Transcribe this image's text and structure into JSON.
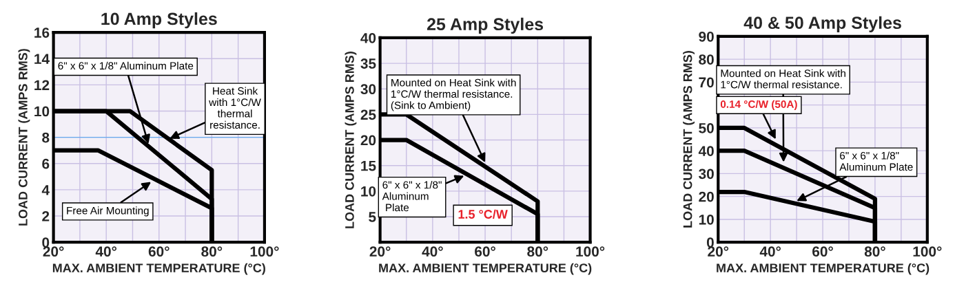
{
  "chart_data": [
    {
      "type": "line",
      "title": "10 Amp Styles",
      "xlabel": "MAX. AMBIENT TEMPERATURE (°C)",
      "ylabel": "LOAD CURRENT (AMPS RMS)",
      "xlim": [
        20,
        100
      ],
      "ylim": [
        0,
        16
      ],
      "xticks": [
        {
          "value": 20,
          "label": "20°"
        },
        {
          "value": 30,
          "label": null
        },
        {
          "value": 40,
          "label": "40°"
        },
        {
          "value": 50,
          "label": null
        },
        {
          "value": 60,
          "label": "60°"
        },
        {
          "value": 70,
          "label": null
        },
        {
          "value": 80,
          "label": "80°"
        },
        {
          "value": 90,
          "label": null
        },
        {
          "value": 100,
          "label": "100°"
        }
      ],
      "yticks": [
        0,
        2,
        4,
        6,
        8,
        10,
        12,
        14,
        16
      ],
      "grid": true,
      "series": [
        {
          "color": "#000000",
          "x": [
            20,
            49,
            80,
            80
          ],
          "values": [
            10,
            10,
            5.5,
            0
          ]
        },
        {
          "color": "#000000",
          "x": [
            20,
            40,
            80,
            80
          ],
          "values": [
            10,
            10,
            3.3,
            0
          ]
        },
        {
          "color": "#000000",
          "x": [
            20,
            37,
            80,
            80
          ],
          "values": [
            7,
            7,
            2.6,
            0
          ]
        }
      ],
      "ref_lines": [
        {
          "axis": "y",
          "value": 8,
          "color": "#66aaee"
        }
      ],
      "annotations": [
        {
          "text": "6\" x 6\" x 1/8\" Aluminum Plate",
          "x": 56,
          "y": 7.5
        },
        {
          "text": "Heat Sink\nwith 1°C/W\nthermal\nresistance.",
          "x": 64,
          "y": 7.9
        },
        {
          "text": "Free Air Mounting",
          "x": 57,
          "y": 4.6
        }
      ]
    },
    {
      "type": "line",
      "title": "25 Amp Styles",
      "xlabel": "MAX. AMBIENT TEMPERATURE (°C)",
      "ylabel": "LOAD CURRENT (AMPS RMS)",
      "xlim": [
        20,
        100
      ],
      "ylim": [
        0,
        40
      ],
      "xticks": [
        {
          "value": 20,
          "label": "20°"
        },
        {
          "value": 30,
          "label": null
        },
        {
          "value": 40,
          "label": "40°"
        },
        {
          "value": 50,
          "label": null
        },
        {
          "value": 60,
          "label": "60°"
        },
        {
          "value": 70,
          "label": null
        },
        {
          "value": 80,
          "label": "80°"
        },
        {
          "value": 90,
          "label": null
        },
        {
          "value": 100,
          "label": "100°"
        }
      ],
      "yticks": [
        5,
        10,
        15,
        20,
        25,
        30,
        35,
        40
      ],
      "grid": true,
      "series": [
        {
          "color": "#000000",
          "x": [
            20,
            30,
            80,
            80
          ],
          "values": [
            25,
            25,
            8,
            0
          ]
        },
        {
          "color": "#000000",
          "x": [
            20,
            30,
            80,
            80
          ],
          "values": [
            20,
            20,
            5.5,
            0
          ]
        }
      ],
      "annotations": [
        {
          "text": "Mounted on Heat Sink with\n1°C/W thermal resistance.\n(Sink to Ambient)",
          "x": 60,
          "y": 15.6
        },
        {
          "text": "6\" x 6\" x 1/8\"\nAluminum\n Plate",
          "x": 52,
          "y": 13
        },
        "1.5 °C/W"
      ]
    },
    {
      "type": "line",
      "title": "40 & 50 Amp Styles",
      "xlabel": "MAX. AMBIENT TEMPERATURE (°C)",
      "ylabel": "LOAD CURRENT (AMPS RMS)",
      "xlim": [
        20,
        100
      ],
      "ylim": [
        0,
        90
      ],
      "xticks": [
        {
          "value": 20,
          "label": "20°"
        },
        {
          "value": 30,
          "label": null
        },
        {
          "value": 40,
          "label": "40°"
        },
        {
          "value": 50,
          "label": null
        },
        {
          "value": 60,
          "label": "60°"
        },
        {
          "value": 70,
          "label": null
        },
        {
          "value": 80,
          "label": "80°"
        },
        {
          "value": 90,
          "label": null
        },
        {
          "value": 100,
          "label": "100°"
        }
      ],
      "yticks": [
        0,
        10,
        20,
        30,
        40,
        50,
        {
          "value": 60,
          "label": null
        },
        70,
        80,
        90
      ],
      "grid": true,
      "series": [
        {
          "color": "#000000",
          "x": [
            20,
            30,
            80,
            80
          ],
          "values": [
            50,
            50,
            19,
            0
          ]
        },
        {
          "color": "#000000",
          "x": [
            20,
            30,
            80,
            80
          ],
          "values": [
            40,
            40,
            15,
            0
          ]
        },
        {
          "color": "#000000",
          "x": [
            20,
            30,
            80,
            80
          ],
          "values": [
            22,
            22,
            9,
            0
          ]
        }
      ],
      "annotations": [
        {
          "text": "Mounted on Heat Sink with\n1°C/W thermal resistance.",
          "x": 45,
          "y": 35
        },
        {
          "text": "0.14 °C/W (50A)",
          "x": 42,
          "y": 45
        },
        {
          "text": "6\" x 6\" x 1/8\"\nAluminum Plate",
          "x": 50,
          "y": 18
        }
      ]
    }
  ]
}
